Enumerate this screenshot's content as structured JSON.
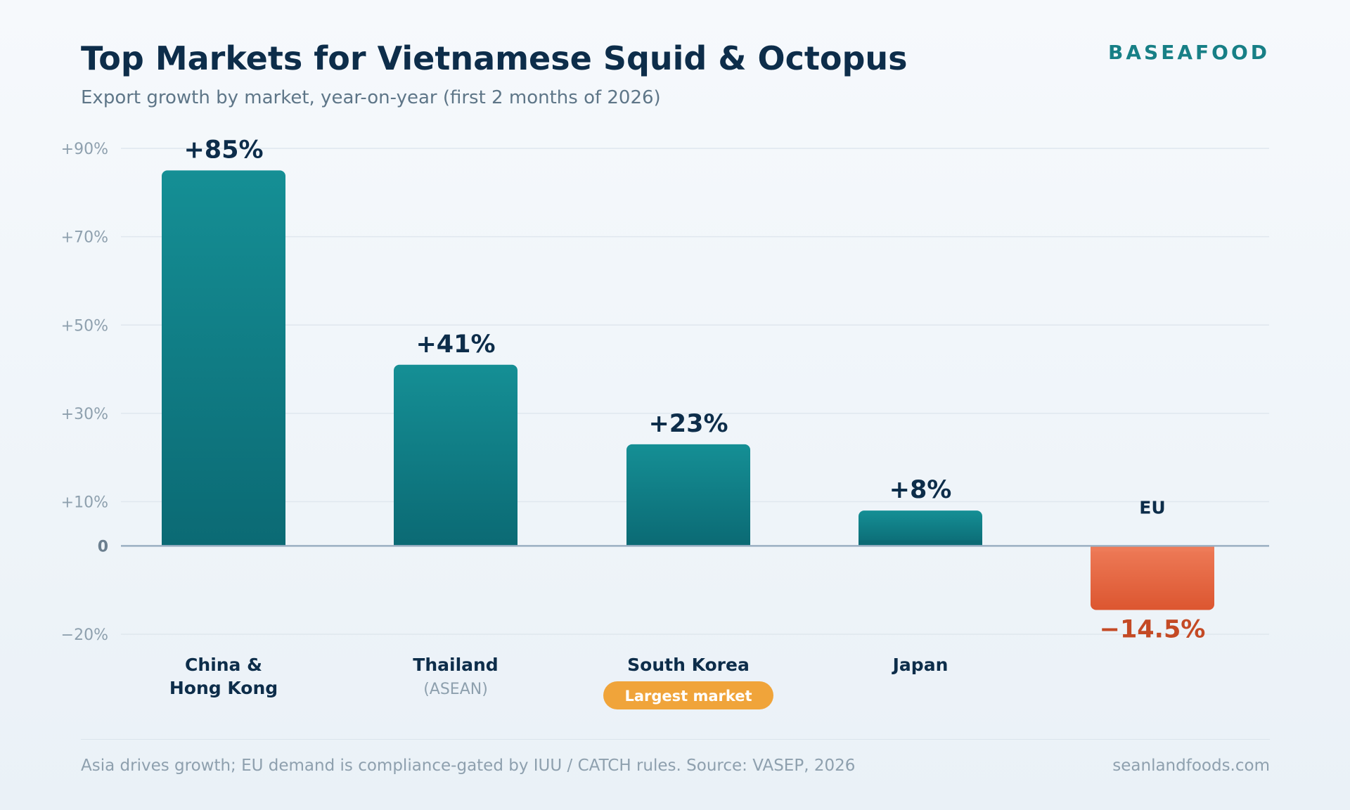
{
  "header": {
    "title": "Top Markets for Vietnamese Squid & Octopus",
    "subtitle": "Export growth by market, year-on-year (first 2 months of 2026)",
    "brand": "BASEAFOOD"
  },
  "footer": {
    "note": "Asia drives growth; EU demand is compliance-gated by IUU / CATCH rules. Source: VASEP, 2026",
    "site": "seanlandfoods.com"
  },
  "chart_data": {
    "type": "bar",
    "title": "Top Markets for Vietnamese Squid & Octopus",
    "subtitle": "Export growth by market, year-on-year (first 2 months of 2026)",
    "xlabel": "",
    "ylabel": "",
    "ylim": [
      -20,
      90
    ],
    "yticks": [
      {
        "value": 90,
        "label": "+90%"
      },
      {
        "value": 70,
        "label": "+70%"
      },
      {
        "value": 50,
        "label": "+50%"
      },
      {
        "value": 30,
        "label": "+30%"
      },
      {
        "value": 10,
        "label": "+10%"
      },
      {
        "value": 0,
        "label": "0"
      },
      {
        "value": -20,
        "label": "−20%"
      }
    ],
    "grid": true,
    "legend": "none",
    "categories": [
      {
        "lines": [
          "China &",
          "Hong Kong"
        ],
        "sublabel": "",
        "badge": "",
        "value": 85,
        "label": "+85%"
      },
      {
        "lines": [
          "Thailand"
        ],
        "sublabel": "(ASEAN)",
        "badge": "",
        "value": 41,
        "label": "+41%"
      },
      {
        "lines": [
          "South Korea"
        ],
        "sublabel": "",
        "badge": "Largest market",
        "value": 23,
        "label": "+23%"
      },
      {
        "lines": [
          "Japan"
        ],
        "sublabel": "",
        "badge": "",
        "value": 8,
        "label": "+8%"
      },
      {
        "lines": [
          "EU"
        ],
        "sublabel": "",
        "badge": "",
        "value": -14.5,
        "label": "−14.5%"
      }
    ],
    "colors": {
      "positive_top": "#158f95",
      "positive_bottom": "#0b6a74",
      "negative_top": "#ee7b58",
      "negative_bottom": "#dc5630",
      "positive_label": "#0d2d4a",
      "negative_label": "#c44a25",
      "badge": "#f0a43a",
      "grid": "#dfe7ee",
      "zero_line": "#9aafc2",
      "tick": "#8ea0ae",
      "category": "#0d2d4a"
    }
  }
}
